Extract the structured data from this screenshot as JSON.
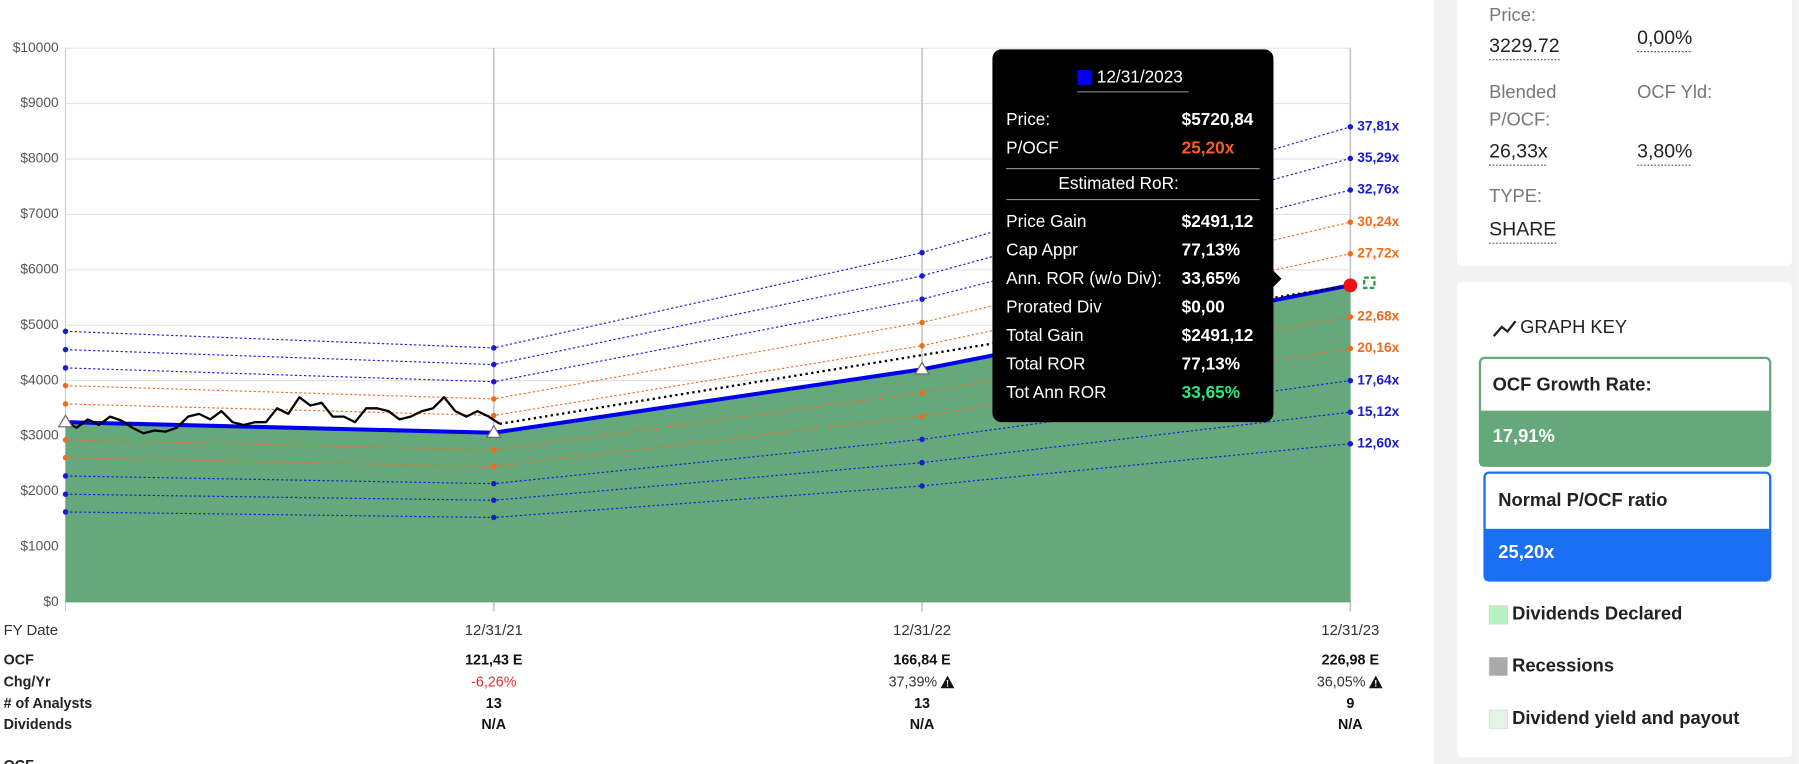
{
  "chart_data": {
    "type": "line",
    "x": [
      0,
      1,
      2,
      3
    ],
    "xlim": [
      0,
      3
    ],
    "xticks": [
      {
        "value": 1,
        "label": "12/31/21"
      },
      {
        "value": 2,
        "label": "12/31/22"
      },
      {
        "value": 3,
        "label": "12/31/23"
      }
    ],
    "x_label": "FY Date",
    "ylim": [
      0,
      10000
    ],
    "yticks": [
      {
        "value": 0,
        "label": "$0"
      },
      {
        "value": 1000,
        "label": "$1000"
      },
      {
        "value": 2000,
        "label": "$2000"
      },
      {
        "value": 3000,
        "label": "$3000"
      },
      {
        "value": 4000,
        "label": "$4000"
      },
      {
        "value": 5000,
        "label": "$5000"
      },
      {
        "value": 6000,
        "label": "$6000"
      },
      {
        "value": 7000,
        "label": "$7000"
      },
      {
        "value": 8000,
        "label": "$8000"
      },
      {
        "value": 9000,
        "label": "$9000"
      },
      {
        "value": 10000,
        "label": "$10000"
      }
    ],
    "grid": true,
    "series": [
      {
        "name": "37,81x",
        "color": "#1a1ad6",
        "values": [
          4890,
          4590,
          6310,
          8580
        ]
      },
      {
        "name": "35,29x",
        "color": "#1a1ad6",
        "values": [
          4560,
          4290,
          5890,
          8010
        ]
      },
      {
        "name": "32,76x",
        "color": "#1a1ad6",
        "values": [
          4230,
          3980,
          5470,
          7440
        ]
      },
      {
        "name": "30,24x",
        "color": "#f26b1d",
        "values": [
          3910,
          3670,
          5050,
          6860
        ]
      },
      {
        "name": "27,72x",
        "color": "#f26b1d",
        "values": [
          3580,
          3370,
          4630,
          6290
        ]
      },
      {
        "name": "22,68x",
        "color": "#f26b1d",
        "values": [
          2930,
          2750,
          3780,
          5150
        ]
      },
      {
        "name": "20,16x",
        "color": "#f26b1d",
        "values": [
          2610,
          2450,
          3360,
          4580
        ]
      },
      {
        "name": "17,64x",
        "color": "#1a1ad6",
        "values": [
          2280,
          2140,
          2940,
          4000
        ]
      },
      {
        "name": "15,12x",
        "color": "#1a1ad6",
        "values": [
          1950,
          1840,
          2520,
          3430
        ]
      },
      {
        "name": "12,60x",
        "color": "#1a1ad6",
        "values": [
          1630,
          1530,
          2100,
          2860
        ]
      }
    ],
    "fair_value": {
      "color": "#0000ee",
      "fill": "#64a87c",
      "values": [
        3250,
        3060,
        4204,
        5720
      ]
    },
    "price": {
      "color": "#000000",
      "x": [
        0,
        0.026,
        0.052,
        0.078,
        0.104,
        0.13,
        0.156,
        0.182,
        0.208,
        0.234,
        0.26,
        0.286,
        0.312,
        0.338,
        0.364,
        0.39,
        0.416,
        0.442,
        0.468,
        0.494,
        0.52,
        0.546,
        0.572,
        0.598,
        0.624,
        0.65,
        0.676,
        0.702,
        0.728,
        0.754,
        0.78,
        0.806,
        0.832,
        0.858,
        0.884,
        0.91,
        0.936,
        0.962,
        0.988,
        1.014
      ],
      "values": [
        3250,
        3150,
        3300,
        3200,
        3350,
        3280,
        3150,
        3050,
        3100,
        3080,
        3150,
        3350,
        3400,
        3300,
        3450,
        3250,
        3200,
        3250,
        3250,
        3500,
        3400,
        3700,
        3550,
        3600,
        3350,
        3350,
        3250,
        3500,
        3500,
        3450,
        3300,
        3350,
        3450,
        3500,
        3700,
        3450,
        3350,
        3450,
        3350,
        3220
      ]
    },
    "projection": {
      "color": "#000000",
      "x": [
        1.014,
        3
      ],
      "values": [
        3220,
        5720
      ]
    }
  },
  "table": {
    "rows": [
      {
        "label": "OCF",
        "cells": [
          "121,43 E",
          "166,84 E",
          "226,98 E"
        ]
      },
      {
        "label": "Chg/Yr",
        "cells": [
          "-6,26%",
          "37,39%",
          "36,05%"
        ]
      },
      {
        "label": "# of Analysts",
        "cells": [
          "13",
          "13",
          "9"
        ]
      },
      {
        "label": "Dividends",
        "cells": [
          "N/A",
          "N/A",
          "N/A"
        ]
      }
    ],
    "footer": "OCF"
  },
  "tooltip": {
    "date": "12/31/2023",
    "rows": [
      {
        "label": "Price:",
        "value": "$5720,84"
      },
      {
        "label": "P/OCF",
        "value": "25,20x"
      }
    ],
    "subtitle": "Estimated RoR:",
    "ror_rows": [
      {
        "label": "Price Gain",
        "value": "$2491,12"
      },
      {
        "label": "Cap Appr",
        "value": "77,13%"
      },
      {
        "label": "Ann. ROR (w/o Div):",
        "value": "33,65%"
      },
      {
        "label": "Prorated Div",
        "value": "$0,00"
      },
      {
        "label": "Total Gain",
        "value": "$2491,12"
      },
      {
        "label": "Total ROR",
        "value": "77,13%"
      },
      {
        "label": "Tot Ann ROR",
        "value": "33,65%"
      }
    ]
  },
  "sidebar": {
    "price_label": "Price:",
    "price": "3229.72",
    "change": "0,00%",
    "blended_label_1": "Blended",
    "blended_label_2": "P/OCF:",
    "blended": "26,33x",
    "yield_label": "OCF Yld:",
    "yield": "3,80%",
    "type_label": "TYPE:",
    "type": "SHARE",
    "graph_key": "GRAPH KEY",
    "growth_label": "OCF Growth Rate:",
    "growth": "17,91%",
    "normal_label": "Normal P/OCF ratio",
    "normal": "25,20x",
    "legend": [
      "Dividends Declared",
      "Recessions",
      "Dividend yield and payout"
    ]
  }
}
